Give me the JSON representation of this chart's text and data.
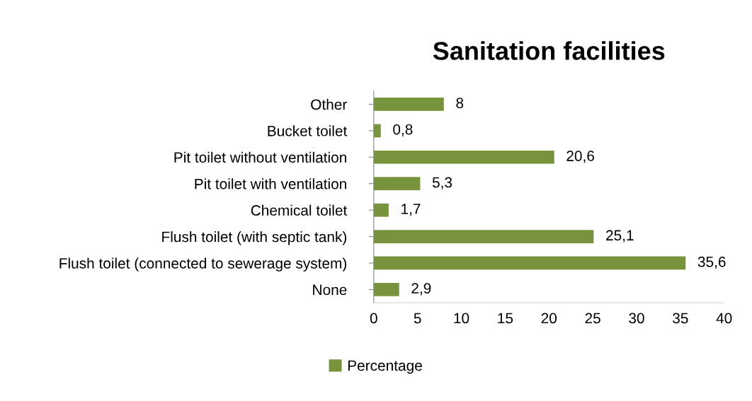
{
  "chart_data": {
    "type": "bar",
    "orientation": "horizontal",
    "title": "Sanitation facilities",
    "categories": [
      "Other",
      "Bucket toilet",
      "Pit toilet without ventilation",
      "Pit toilet with ventilation",
      "Chemical toilet",
      "Flush toilet (with septic tank)",
      "Flush toilet (connected to sewerage system)",
      "None"
    ],
    "series": [
      {
        "name": "Percentage",
        "color": "#77933c",
        "values": [
          8,
          0.8,
          20.6,
          5.3,
          1.7,
          25.1,
          35.6,
          2.9
        ],
        "value_labels": [
          "8",
          "0,8",
          "20,6",
          "5,3",
          "1,7",
          "25,1",
          "35,6",
          "2,9"
        ]
      }
    ],
    "xlim": [
      0,
      40
    ],
    "xticks": [
      0,
      5,
      10,
      15,
      20,
      25,
      30,
      35,
      40
    ],
    "grid": false,
    "legend": "bottom"
  }
}
